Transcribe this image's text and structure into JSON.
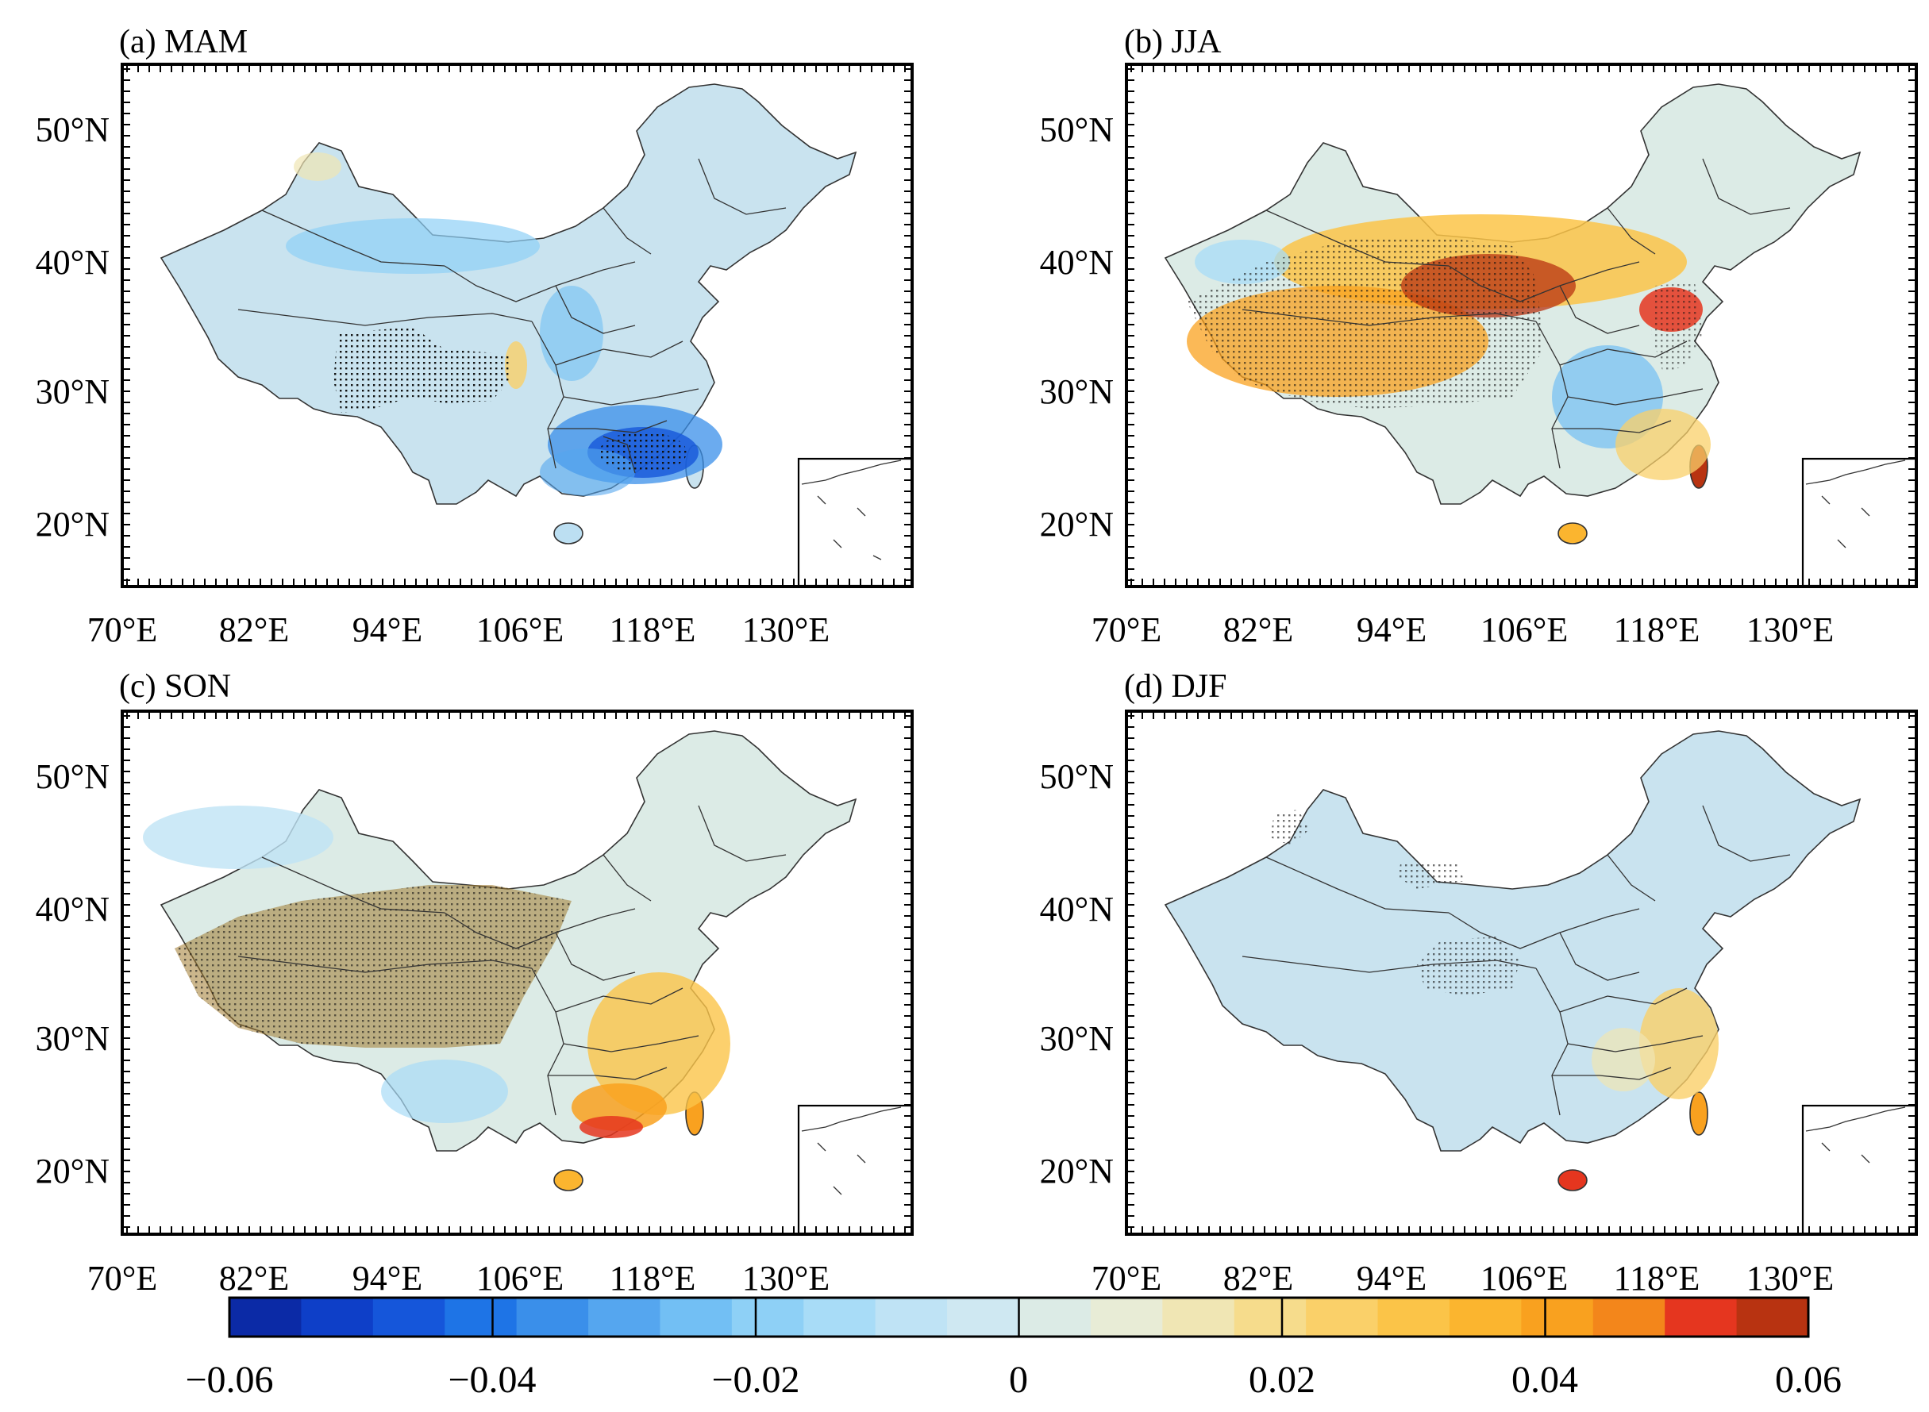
{
  "figure": {
    "panels": [
      {
        "id": "a",
        "title": "(a) MAM",
        "x_ticks": [
          "70°E",
          "82°E",
          "94°E",
          "106°E",
          "118°E",
          "130°E"
        ],
        "y_ticks": [
          "50°N",
          "40°N",
          "30°N",
          "20°N"
        ]
      },
      {
        "id": "b",
        "title": "(b) JJA",
        "x_ticks": [
          "70°E",
          "82°E",
          "94°E",
          "106°E",
          "118°E",
          "130°E"
        ],
        "y_ticks": [
          "50°N",
          "40°N",
          "30°N",
          "20°N"
        ]
      },
      {
        "id": "c",
        "title": "(c) SON",
        "x_ticks": [
          "70°E",
          "82°E",
          "94°E",
          "106°E",
          "118°E",
          "130°E"
        ],
        "y_ticks": [
          "50°N",
          "40°N",
          "30°N",
          "20°N"
        ]
      },
      {
        "id": "d",
        "title": "(d) DJF",
        "x_ticks": [
          "70°E",
          "82°E",
          "94°E",
          "106°E",
          "118°E",
          "130°E"
        ],
        "y_ticks": [
          "50°N",
          "40°N",
          "30°N",
          "20°N"
        ]
      }
    ],
    "colorbar": {
      "tick_labels": [
        "−0.06",
        "−0.04",
        "−0.02",
        "0",
        "0.02",
        "0.04",
        "0.06"
      ],
      "colors": [
        "#0b2aa6",
        "#0e3fc8",
        "#1556da",
        "#1e74e6",
        "#3a8fea",
        "#55a6ef",
        "#72bff4",
        "#8ed0f6",
        "#a8dcf7",
        "#bfe3f5",
        "#cfe8f2",
        "#dcebe6",
        "#e8ecd6",
        "#f0e6b4",
        "#f6dc8c",
        "#fad069",
        "#fbc448",
        "#fbb52f",
        "#f9a11f",
        "#f3861b",
        "#e5361f",
        "#b83311"
      ]
    }
  }
}
